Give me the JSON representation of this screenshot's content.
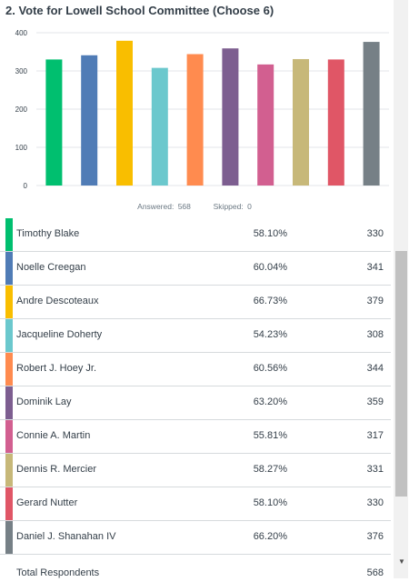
{
  "question": {
    "title": "2. Vote for Lowell School Committee (Choose 6)"
  },
  "stats": {
    "answered_label": "Answered:",
    "answered_value": "568",
    "skipped_label": "Skipped:",
    "skipped_value": "0"
  },
  "chart_data": {
    "type": "bar",
    "categories": [
      "Timothy Blake",
      "Noelle Creegan",
      "Andre Descoteaux",
      "Jacqueline Doherty",
      "Robert J. Hoey Jr.",
      "Dominik Lay",
      "Connie A. Martin",
      "Dennis R. Mercier",
      "Gerard Nutter",
      "Daniel J. Shanahan IV"
    ],
    "values": [
      330,
      341,
      379,
      308,
      344,
      359,
      317,
      331,
      330,
      376
    ],
    "colors": [
      "#00bf6f",
      "#507cb6",
      "#f9be00",
      "#6bc8cd",
      "#ff8b4f",
      "#7d5e90",
      "#d25f90",
      "#c7b879",
      "#e05666",
      "#768086"
    ],
    "ylim": [
      0,
      400
    ],
    "yticks": [
      "0",
      "100",
      "200",
      "300",
      "400"
    ],
    "grid": true,
    "title": "",
    "xlabel": "",
    "ylabel": ""
  },
  "table": {
    "rows": [
      {
        "name": "Timothy Blake",
        "percent": "58.10%",
        "count": "330",
        "color": "#00bf6f"
      },
      {
        "name": "Noelle Creegan",
        "percent": "60.04%",
        "count": "341",
        "color": "#507cb6"
      },
      {
        "name": "Andre Descoteaux",
        "percent": "66.73%",
        "count": "379",
        "color": "#f9be00"
      },
      {
        "name": "Jacqueline Doherty",
        "percent": "54.23%",
        "count": "308",
        "color": "#6bc8cd"
      },
      {
        "name": "Robert J. Hoey Jr.",
        "percent": "60.56%",
        "count": "344",
        "color": "#ff8b4f"
      },
      {
        "name": "Dominik Lay",
        "percent": "63.20%",
        "count": "359",
        "color": "#7d5e90"
      },
      {
        "name": "Connie A. Martin",
        "percent": "55.81%",
        "count": "317",
        "color": "#d25f90"
      },
      {
        "name": "Dennis R. Mercier",
        "percent": "58.27%",
        "count": "331",
        "color": "#c7b879"
      },
      {
        "name": "Gerard Nutter",
        "percent": "58.10%",
        "count": "330",
        "color": "#e05666"
      },
      {
        "name": "Daniel J. Shanahan IV",
        "percent": "66.20%",
        "count": "376",
        "color": "#768086"
      }
    ],
    "total_label": "Total Respondents",
    "total_value": "568"
  },
  "scrollbar": {
    "down_arrow": "▼"
  }
}
